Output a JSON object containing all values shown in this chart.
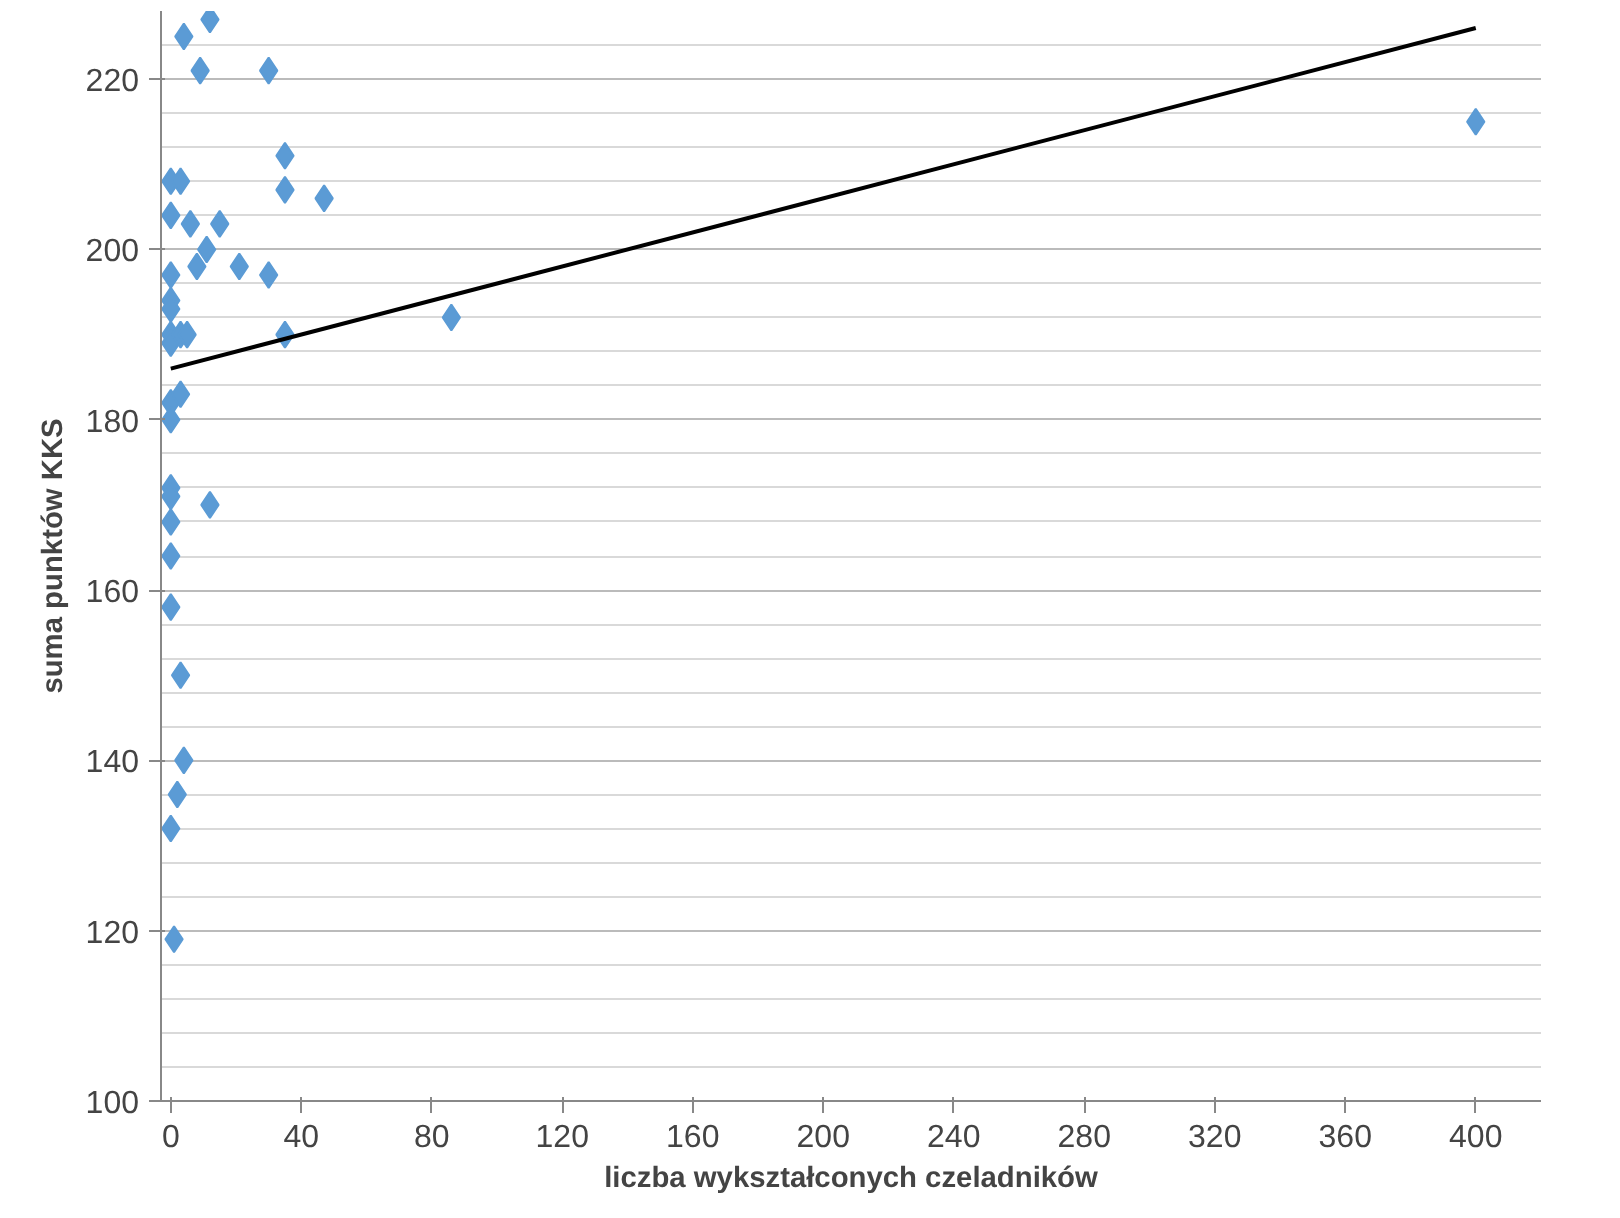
{
  "chart_data": {
    "type": "scatter",
    "xlabel": "liczba wykształconych czeladników",
    "ylabel": "suma punktów KKS",
    "xlim": [
      -3,
      420
    ],
    "ylim": [
      100,
      228
    ],
    "xticks": [
      0,
      40,
      80,
      120,
      160,
      200,
      240,
      280,
      320,
      360,
      400
    ],
    "yticks": [
      100,
      120,
      140,
      160,
      180,
      200,
      220
    ],
    "grid": "y",
    "series": [
      {
        "marker": "diamond",
        "color": "#5b9bd5",
        "x": [
          0,
          3,
          0,
          4,
          12,
          9,
          30,
          35,
          35,
          47,
          6,
          15,
          11,
          8,
          21,
          30,
          0,
          0,
          0,
          0,
          0,
          3,
          5,
          35,
          86,
          0,
          3,
          0,
          0,
          0,
          0,
          12,
          0,
          0,
          3,
          4,
          2,
          0,
          1,
          400
        ],
        "values": [
          208,
          208,
          204,
          225,
          227,
          221,
          221,
          211,
          207,
          206,
          203,
          203,
          200,
          198,
          198,
          197,
          197,
          194,
          193,
          190,
          189,
          190,
          190,
          190,
          192,
          182,
          183,
          180,
          172,
          171,
          168,
          170,
          164,
          158,
          150,
          140,
          136,
          132,
          119,
          215
        ]
      },
      {
        "type": "line",
        "marker": "none",
        "color": "#000000",
        "x": [
          0,
          400
        ],
        "values": [
          186,
          226
        ]
      }
    ]
  }
}
